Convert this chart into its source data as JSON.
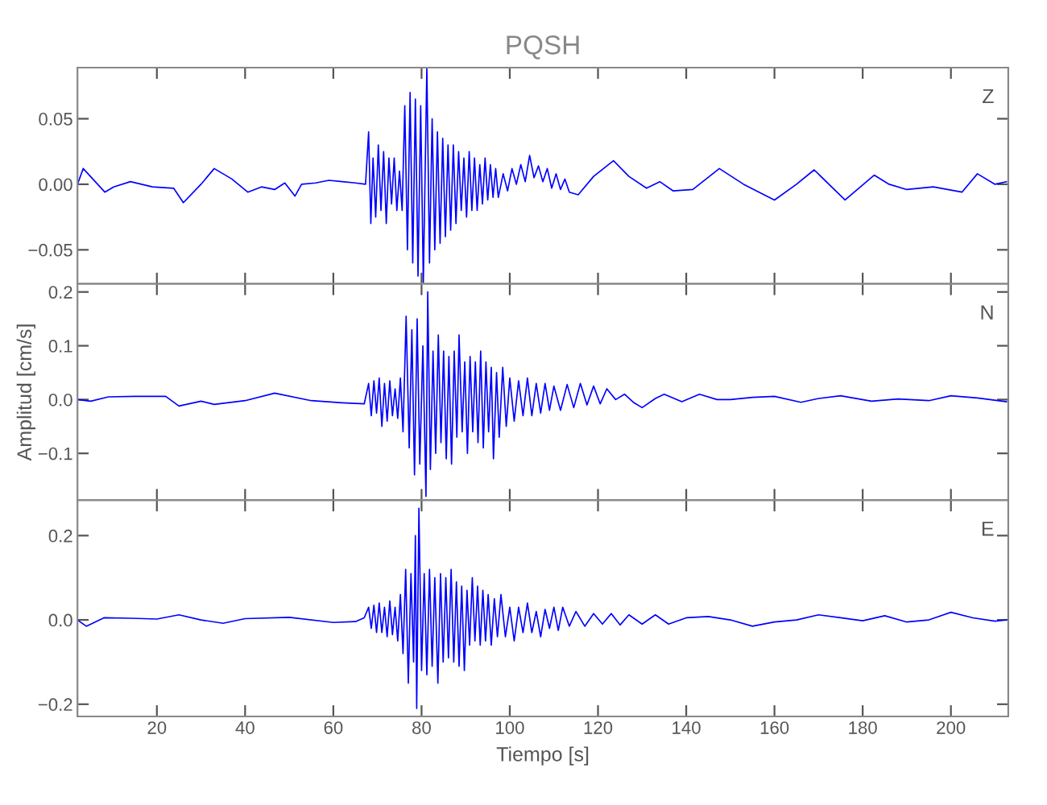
{
  "chart_data": [
    {
      "type": "line",
      "title": "PQSH",
      "annotations": [
        "Z"
      ],
      "color": "#0000ff",
      "tick_labels": "y",
      "xlim": [
        2,
        213
      ],
      "ylim": [
        -0.076,
        0.089
      ],
      "xticks": [
        20,
        40,
        60,
        80,
        100,
        120,
        140,
        160,
        180,
        200
      ],
      "yticks": [
        {
          "value": -0.05,
          "label": "−0.05"
        },
        {
          "value": 0,
          "label": "0.00"
        },
        {
          "value": 0.05,
          "label": "0.05"
        }
      ],
      "x": [
        2,
        3.3,
        8.2,
        10.2,
        14,
        19,
        23.8,
        26,
        30,
        33,
        37,
        40.6,
        43.7,
        46.7,
        49,
        51.3,
        52.8,
        56,
        59,
        62,
        65,
        67.3,
        68,
        68.5,
        69,
        69.6,
        70.2,
        70.8,
        71.4,
        72,
        72.6,
        73.2,
        73.8,
        74.4,
        75,
        75.6,
        76.2,
        76.8,
        77.4,
        78,
        78.6,
        79.2,
        79.8,
        80.4,
        81.2,
        81.8,
        82.4,
        83,
        83.6,
        84.2,
        84.8,
        85.4,
        86,
        86.6,
        87.2,
        87.8,
        88.4,
        89,
        89.6,
        90.2,
        90.8,
        91.4,
        92,
        92.6,
        93.2,
        93.8,
        94.4,
        95,
        95.6,
        96.2,
        96.8,
        97.4,
        98.5,
        99.5,
        100.5,
        101.5,
        102.5,
        103.5,
        104.5,
        105.5,
        106.5,
        107.5,
        108.5,
        109.5,
        110.5,
        111.5,
        112.5,
        113.5,
        115.5,
        119,
        123.5,
        127,
        131,
        134,
        137,
        141.5,
        147.5,
        153,
        160,
        165,
        169,
        176,
        182.6,
        186,
        190,
        196,
        202.5,
        206,
        210,
        212.6
      ],
      "values": [
        0.0,
        0.012,
        -0.006,
        -0.002,
        0.002,
        -0.002,
        -0.003,
        -0.014,
        0.0,
        0.012,
        0.004,
        -0.006,
        -0.002,
        -0.004,
        0.001,
        -0.009,
        0.0,
        0.001,
        0.003,
        0.002,
        0.001,
        0.0,
        0.04,
        -0.03,
        0.02,
        -0.025,
        0.03,
        -0.02,
        0.025,
        -0.03,
        0.02,
        -0.015,
        0.02,
        -0.02,
        0.01,
        -0.02,
        0.06,
        -0.05,
        0.07,
        -0.06,
        0.065,
        -0.07,
        0.06,
        -0.075,
        0.089,
        -0.06,
        0.05,
        -0.05,
        0.04,
        -0.045,
        0.035,
        -0.04,
        0.03,
        -0.035,
        0.03,
        -0.03,
        0.025,
        -0.02,
        0.02,
        -0.025,
        0.025,
        -0.02,
        0.02,
        -0.02,
        0.015,
        -0.015,
        0.02,
        -0.012,
        0.015,
        -0.01,
        0.012,
        -0.01,
        0.008,
        -0.005,
        0.012,
        0.0,
        0.015,
        0.002,
        0.022,
        0.005,
        0.014,
        0.002,
        0.012,
        -0.003,
        0.008,
        -0.004,
        0.004,
        -0.006,
        -0.008,
        0.006,
        0.018,
        0.006,
        -0.003,
        0.002,
        -0.005,
        -0.004,
        0.012,
        0.0,
        -0.012,
        0.0,
        0.011,
        -0.012,
        0.007,
        0.0,
        -0.004,
        -0.002,
        -0.006,
        0.008,
        0.0,
        0.002
      ]
    },
    {
      "type": "line",
      "ylabel": "Amplitud [cm/s]",
      "annotations": [
        "N"
      ],
      "color": "#0000ff",
      "tick_labels": "y",
      "xlim": [
        2,
        213
      ],
      "ylim": [
        -0.187,
        0.215
      ],
      "xticks": [
        20,
        40,
        60,
        80,
        100,
        120,
        140,
        160,
        180,
        200
      ],
      "yticks": [
        {
          "value": -0.1,
          "label": "−0.1"
        },
        {
          "value": 0,
          "label": "0.0"
        },
        {
          "value": 0.1,
          "label": "0.1"
        },
        {
          "value": 0.2,
          "label": "0.2"
        }
      ],
      "x": [
        2,
        5,
        9,
        15,
        22,
        25,
        30,
        33,
        40,
        46.7,
        55,
        62,
        67,
        68,
        68.6,
        69.2,
        69.8,
        70.4,
        71,
        71.6,
        72.2,
        72.8,
        73.4,
        74,
        74.6,
        75.2,
        75.8,
        76.5,
        77.2,
        77.8,
        78.4,
        79,
        79.6,
        80.3,
        81,
        81.4,
        82,
        82.6,
        83.2,
        83.8,
        84.4,
        85,
        85.6,
        86.2,
        86.8,
        87.4,
        88,
        88.5,
        89.2,
        89.8,
        90.4,
        91,
        91.6,
        92.2,
        92.8,
        93.4,
        94,
        94.6,
        95.2,
        95.8,
        96.3,
        97,
        97.6,
        98.4,
        99.2,
        100,
        101,
        102,
        103,
        104,
        105,
        106,
        107,
        108,
        109,
        110,
        111.5,
        113,
        114.5,
        116,
        117.5,
        119,
        120.5,
        122,
        124,
        126,
        128,
        130,
        133,
        135,
        139,
        143,
        147,
        150,
        155,
        160,
        166,
        170,
        175,
        182,
        188,
        195,
        200,
        206,
        212.6
      ],
      "values": [
        0.0,
        -0.003,
        0.005,
        0.006,
        0.006,
        -0.012,
        -0.003,
        -0.009,
        -0.002,
        0.012,
        -0.002,
        -0.006,
        -0.008,
        0.03,
        -0.03,
        0.035,
        -0.025,
        0.04,
        -0.05,
        0.03,
        -0.04,
        0.035,
        -0.03,
        0.02,
        -0.035,
        0.04,
        -0.06,
        0.155,
        -0.09,
        0.13,
        -0.14,
        0.15,
        -0.12,
        0.1,
        -0.18,
        0.2,
        -0.13,
        0.09,
        -0.1,
        0.12,
        -0.08,
        0.09,
        -0.11,
        0.08,
        -0.12,
        0.09,
        -0.07,
        0.12,
        -0.06,
        0.07,
        -0.1,
        0.08,
        -0.06,
        0.07,
        -0.08,
        0.09,
        -0.09,
        0.07,
        -0.06,
        0.06,
        -0.11,
        0.05,
        -0.07,
        0.06,
        -0.05,
        0.04,
        -0.04,
        0.035,
        -0.03,
        0.04,
        -0.03,
        0.03,
        -0.025,
        0.03,
        -0.02,
        0.025,
        -0.02,
        0.028,
        -0.015,
        0.03,
        -0.01,
        0.025,
        -0.008,
        0.02,
        0.0,
        0.01,
        -0.005,
        -0.015,
        0.002,
        0.01,
        -0.004,
        0.01,
        0.0,
        0.0,
        0.004,
        0.006,
        -0.005,
        0.002,
        0.007,
        -0.003,
        0.001,
        -0.002,
        0.007,
        0.003,
        -0.004
      ]
    },
    {
      "type": "line",
      "xlabel": "Tiempo [s]",
      "annotations": [
        "E"
      ],
      "color": "#0000ff",
      "xlim": [
        2,
        213
      ],
      "ylim": [
        -0.229,
        0.284
      ],
      "xticks": [
        20,
        40,
        60,
        80,
        100,
        120,
        140,
        160,
        180,
        200
      ],
      "yticks": [
        {
          "value": -0.2,
          "label": "−0.2"
        },
        {
          "value": 0,
          "label": "0.0"
        },
        {
          "value": 0.2,
          "label": "0.2"
        }
      ],
      "x": [
        2,
        4,
        8,
        14,
        20,
        25,
        30,
        35,
        40,
        50,
        60,
        65,
        67,
        68,
        68.6,
        69.2,
        69.8,
        70.4,
        71,
        71.6,
        72.2,
        72.8,
        73.4,
        74,
        74.6,
        75.2,
        75.8,
        76.4,
        77,
        77.6,
        78.2,
        78.6,
        78.9,
        79.4,
        80,
        80.6,
        81.2,
        81.8,
        82.4,
        83,
        83.7,
        84.3,
        84.9,
        85.5,
        86.1,
        86.7,
        87.3,
        87.9,
        88.5,
        89.1,
        89.7,
        90.3,
        90.9,
        91.5,
        92.1,
        92.7,
        93.3,
        93.9,
        94.5,
        95.1,
        95.8,
        96.5,
        97.2,
        98,
        99,
        100,
        101,
        102,
        103,
        104,
        105,
        106,
        107,
        108,
        109,
        110,
        111,
        112,
        113.5,
        115,
        117,
        119,
        121,
        123,
        125,
        127,
        130,
        133,
        136,
        140,
        145,
        150,
        155,
        160,
        165,
        170,
        175,
        180,
        185,
        190,
        195,
        200,
        205,
        210,
        212.6
      ],
      "values": [
        0.0,
        -0.015,
        0.005,
        0.004,
        0.002,
        0.012,
        0.0,
        -0.008,
        0.003,
        0.006,
        -0.006,
        -0.004,
        0.005,
        0.03,
        -0.02,
        0.035,
        -0.03,
        0.04,
        -0.03,
        0.03,
        -0.04,
        0.045,
        -0.035,
        0.03,
        -0.05,
        0.06,
        -0.08,
        0.12,
        -0.15,
        0.11,
        -0.1,
        0.2,
        -0.21,
        0.265,
        -0.12,
        0.11,
        -0.13,
        0.12,
        -0.11,
        0.1,
        -0.15,
        0.11,
        -0.1,
        0.1,
        -0.09,
        0.12,
        -0.1,
        0.09,
        -0.11,
        0.08,
        -0.12,
        0.07,
        -0.06,
        0.1,
        -0.05,
        0.08,
        -0.06,
        0.07,
        -0.05,
        0.06,
        -0.06,
        0.05,
        -0.04,
        0.06,
        -0.04,
        0.03,
        -0.05,
        0.03,
        -0.03,
        0.04,
        -0.03,
        0.02,
        -0.04,
        0.025,
        -0.02,
        0.03,
        -0.025,
        0.03,
        -0.015,
        0.02,
        -0.015,
        0.015,
        -0.01,
        0.015,
        -0.012,
        0.012,
        -0.01,
        0.012,
        -0.01,
        0.005,
        0.008,
        0.0,
        -0.015,
        -0.005,
        0.0,
        0.012,
        0.005,
        -0.002,
        0.01,
        -0.005,
        0.0,
        0.018,
        0.005,
        -0.003,
        0.0
      ]
    }
  ]
}
